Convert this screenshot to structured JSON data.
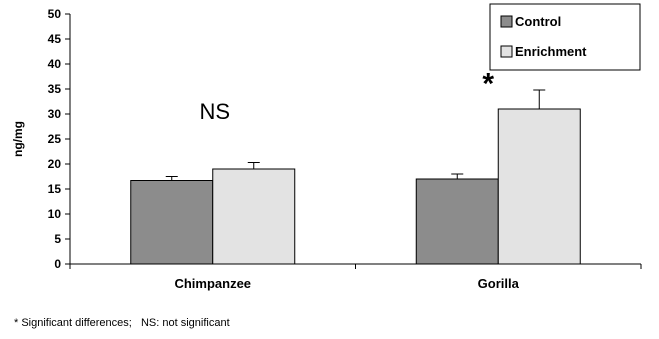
{
  "chart_data": {
    "type": "bar",
    "categories": [
      "Chimpanzee",
      "Gorilla"
    ],
    "series": [
      {
        "name": "Control",
        "values": [
          16.7,
          17.0
        ],
        "errors": [
          0.8,
          1.0
        ],
        "color": "#8c8c8c"
      },
      {
        "name": "Enrichment",
        "values": [
          19.0,
          31.0
        ],
        "errors": [
          1.3,
          3.8
        ],
        "color": "#e3e3e3"
      }
    ],
    "ylabel": "ng/mg",
    "xlabel": "",
    "ylim": [
      0,
      50
    ],
    "yticks": [
      0,
      5,
      10,
      15,
      20,
      25,
      30,
      35,
      40,
      45,
      50
    ],
    "legend_position": "top-right",
    "grid": false,
    "annotations": [
      {
        "category": "Chimpanzee",
        "text": "NS"
      },
      {
        "category": "Gorilla",
        "text": "*"
      }
    ],
    "footnote": "* Significant differences;   NS: not significant"
  }
}
